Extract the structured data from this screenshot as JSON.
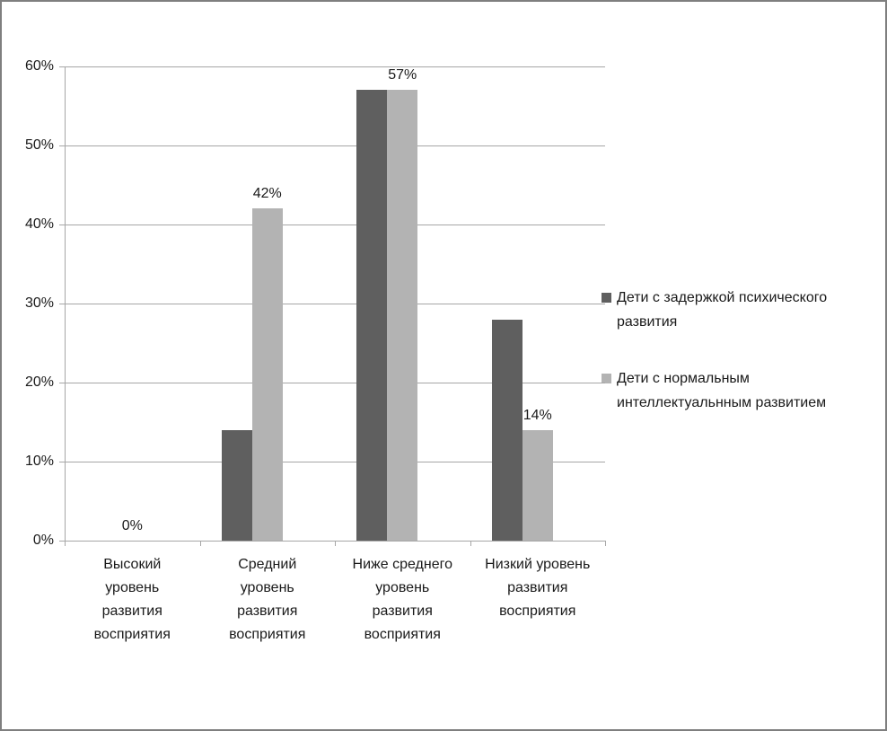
{
  "chart_data": {
    "type": "bar",
    "categories": [
      "Высокий\nуровень\nразвития\nвосприятия",
      "Средний\nуровень\nразвития\nвосприятия",
      "Ниже среднего\nуровень\nразвития\nвосприятия",
      "Низкий уровень\nразвития\nвосприятия"
    ],
    "series": [
      {
        "name": "Дети с задержкой психического\nразвития",
        "color": "#5f5f5f",
        "values": [
          0,
          14,
          57,
          28
        ]
      },
      {
        "name": "Дети с нормальным\nинтеллектуальнным развитием",
        "color": "#b3b3b3",
        "values": [
          0,
          42,
          57,
          14
        ]
      }
    ],
    "data_labels": {
      "on_series_index": 1,
      "values": [
        "0%",
        "42%",
        "57%",
        "14%"
      ]
    },
    "title": "",
    "xlabel": "",
    "ylabel": "",
    "ylim": [
      0,
      60
    ],
    "ytick_step": 10,
    "ytick_labels": [
      "0%",
      "10%",
      "20%",
      "30%",
      "40%",
      "50%",
      "60%"
    ],
    "grid": true,
    "legend_position": "right"
  },
  "colors": {
    "grid": "#a6a6a6",
    "axis": "#a6a6a6",
    "text": "#1a1a1a",
    "frame_border": "#7f7f7f",
    "background": "#ffffff"
  }
}
